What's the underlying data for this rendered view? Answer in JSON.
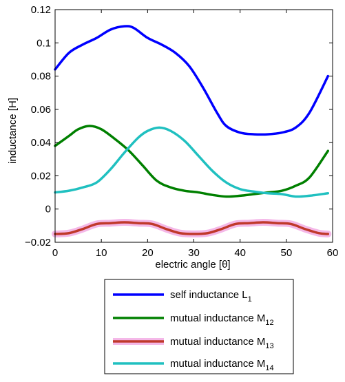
{
  "chart_data": {
    "type": "line",
    "title": "",
    "xlabel": "electric angle [θ]",
    "ylabel": "inductance [H]",
    "xlim": [
      0,
      60
    ],
    "ylim": [
      -0.02,
      0.12
    ],
    "xticks": [
      0,
      10,
      20,
      30,
      40,
      50,
      60
    ],
    "xtick_labels": [
      "0",
      "10",
      "20",
      "30",
      "40",
      "50",
      "60"
    ],
    "yticks": [
      -0.02,
      0,
      0.02,
      0.04,
      0.06,
      0.08,
      0.1,
      0.12
    ],
    "ytick_labels": [
      "−0.02",
      "0",
      "0.02",
      "0.04",
      "0.06",
      "0.08",
      "0.1",
      "0.12"
    ],
    "grid": false,
    "legend_position": "below plot",
    "series": [
      {
        "label_main": "self inductance L",
        "label_sub": "1",
        "color": "#0000ff",
        "x": [
          0,
          3,
          6,
          9,
          12,
          15,
          17,
          20,
          23,
          26,
          29,
          32,
          35,
          37,
          40,
          43,
          46,
          49,
          52,
          55,
          59
        ],
        "y": [
          0.084,
          0.094,
          0.099,
          0.103,
          0.108,
          0.11,
          0.109,
          0.103,
          0.099,
          0.094,
          0.086,
          0.073,
          0.058,
          0.05,
          0.046,
          0.045,
          0.045,
          0.046,
          0.049,
          0.058,
          0.08
        ]
      },
      {
        "label_main": "mutual inductance M",
        "label_sub": "12",
        "color": "#008000",
        "x": [
          0,
          3,
          5,
          7.5,
          10,
          13,
          16,
          19,
          22,
          25,
          28,
          31,
          34,
          37,
          40,
          43,
          46,
          49,
          52,
          55,
          59
        ],
        "y": [
          0.038,
          0.044,
          0.048,
          0.05,
          0.048,
          0.042,
          0.035,
          0.026,
          0.017,
          0.013,
          0.011,
          0.01,
          0.0085,
          0.0075,
          0.008,
          0.009,
          0.01,
          0.011,
          0.014,
          0.019,
          0.035
        ]
      },
      {
        "label_main": "mutual inductance M",
        "label_sub": "13",
        "color": "#c0392b",
        "x": [
          0,
          3,
          6,
          9,
          12,
          15,
          18,
          21,
          24,
          27,
          30,
          33,
          36,
          39,
          42,
          45,
          48,
          51,
          54,
          57,
          59
        ],
        "y": [
          -0.015,
          -0.0145,
          -0.012,
          -0.009,
          -0.0085,
          -0.008,
          -0.0085,
          -0.009,
          -0.012,
          -0.0145,
          -0.015,
          -0.0145,
          -0.012,
          -0.009,
          -0.0085,
          -0.008,
          -0.0085,
          -0.009,
          -0.012,
          -0.0145,
          -0.015
        ]
      },
      {
        "label_main": "mutual inductance M",
        "label_sub": "14",
        "color": "#20c0c0",
        "x": [
          0,
          3,
          6,
          9,
          12,
          15,
          18,
          20,
          22.5,
          25,
          28,
          31,
          34,
          37,
          40,
          43,
          46,
          49,
          52,
          55,
          59
        ],
        "y": [
          0.01,
          0.011,
          0.013,
          0.016,
          0.024,
          0.034,
          0.043,
          0.047,
          0.049,
          0.047,
          0.041,
          0.032,
          0.023,
          0.016,
          0.012,
          0.0105,
          0.0095,
          0.009,
          0.0075,
          0.008,
          0.0095
        ]
      }
    ]
  }
}
